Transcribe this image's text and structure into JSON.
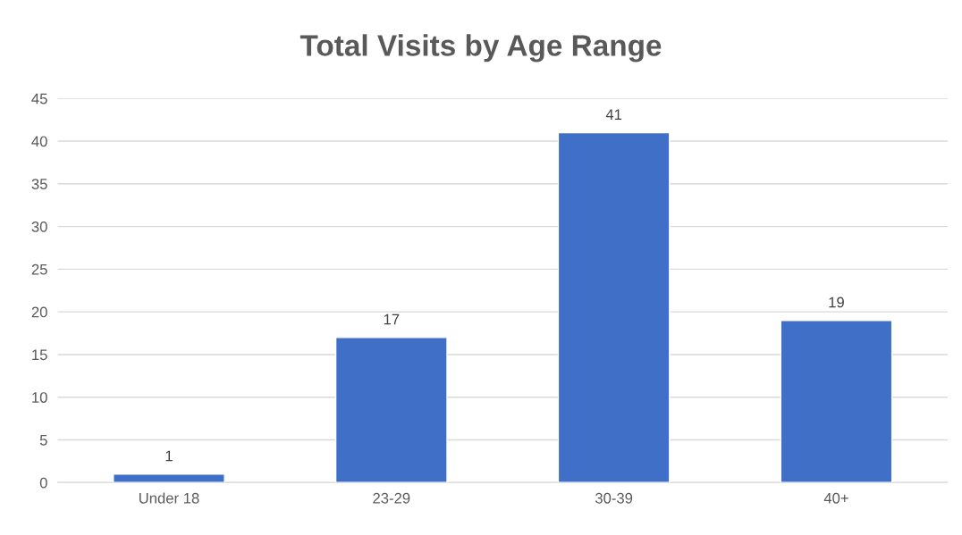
{
  "chart_data": {
    "type": "bar",
    "title": "Total Visits by Age Range",
    "categories": [
      "Under 18",
      "23-29",
      "30-39",
      "40+"
    ],
    "values": [
      1,
      17,
      41,
      19
    ],
    "color": "#3f6fc6",
    "ylim": [
      0,
      45
    ],
    "yticks": [
      0,
      5,
      10,
      15,
      20,
      25,
      30,
      35,
      40,
      45
    ],
    "grid": "y",
    "data_labels": true
  }
}
